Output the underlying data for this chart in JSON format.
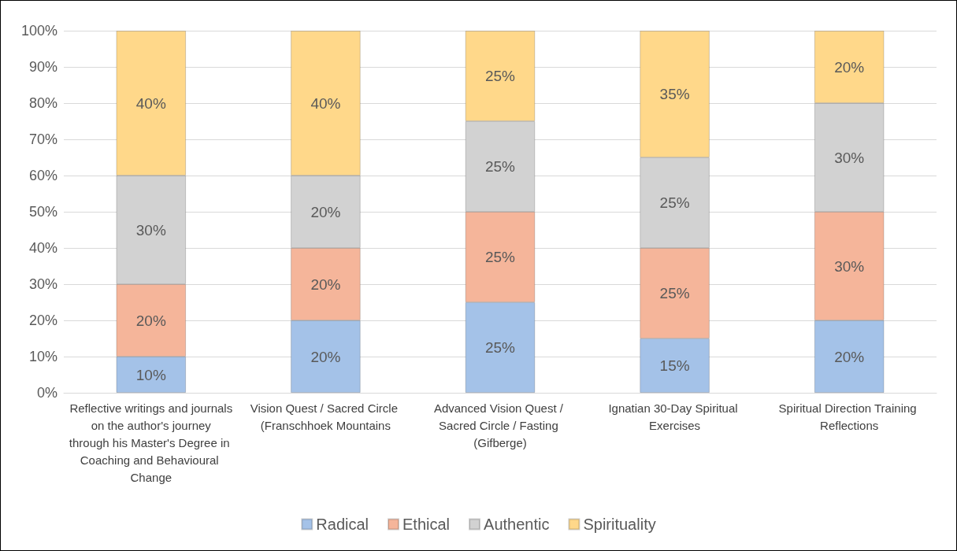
{
  "chart_data": {
    "type": "bar",
    "stacked": true,
    "grid": "y",
    "legend": "bottom",
    "categories": [
      "Reflective writings and journals on the author's journey through his Master's Degree in Coaching and Behavioural Change",
      "Vision Quest / Sacred Circle (Franschhoek Mountains",
      "Advanced Vision Quest / Sacred Circle / Fasting (Gifberge)",
      "Ignatian 30-Day Spiritual Exercises",
      "Spiritual Direction Training Reflections"
    ],
    "ylim": [
      0,
      100
    ],
    "yticks": [
      {
        "value": 0,
        "label": "0%"
      },
      {
        "value": 10,
        "label": "10%"
      },
      {
        "value": 20,
        "label": "20%"
      },
      {
        "value": 30,
        "label": "30%"
      },
      {
        "value": 40,
        "label": "40%"
      },
      {
        "value": 50,
        "label": "50%"
      },
      {
        "value": 60,
        "label": "60%"
      },
      {
        "value": 70,
        "label": "70%"
      },
      {
        "value": 80,
        "label": "80%"
      },
      {
        "value": 90,
        "label": "90%"
      },
      {
        "value": 100,
        "label": "100%"
      }
    ],
    "series": [
      {
        "name": "Radical",
        "color": "#a4c2e8",
        "values": [
          10,
          20,
          25,
          15,
          20
        ],
        "value_labels": [
          "10%",
          "20%",
          "25%",
          "15%",
          "20%"
        ]
      },
      {
        "name": "Ethical",
        "color": "#f5b59a",
        "values": [
          20,
          20,
          25,
          25,
          30
        ],
        "value_labels": [
          "20%",
          "20%",
          "25%",
          "25%",
          "30%"
        ]
      },
      {
        "name": "Authentic",
        "color": "#d2d2d2",
        "values": [
          30,
          20,
          25,
          25,
          30
        ],
        "value_labels": [
          "30%",
          "20%",
          "25%",
          "25%",
          "30%"
        ]
      },
      {
        "name": "Spirituality",
        "color": "#ffd88a",
        "values": [
          40,
          40,
          25,
          35,
          20
        ],
        "value_labels": [
          "40%",
          "40%",
          "25%",
          "35%",
          "20%"
        ]
      }
    ]
  }
}
